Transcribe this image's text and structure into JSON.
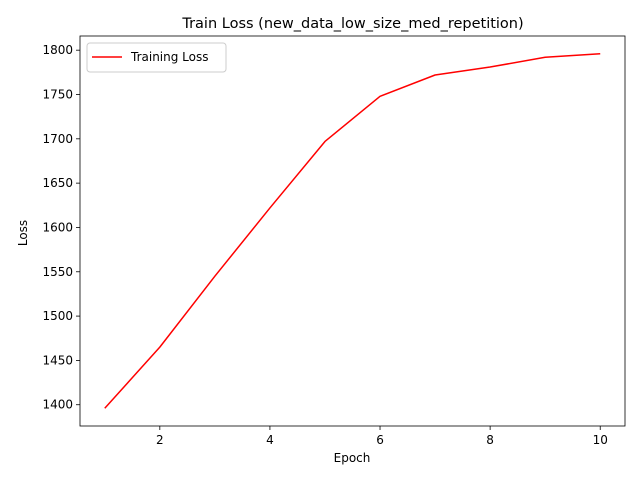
{
  "chart_data": {
    "type": "line",
    "title": "Train Loss (new_data_low_size_med_repetition)",
    "xlabel": "Epoch",
    "ylabel": "Loss",
    "x": [
      1,
      2,
      3,
      4,
      5,
      6,
      7,
      8,
      9,
      10
    ],
    "series": [
      {
        "name": "Training Loss",
        "color": "#ff0000",
        "values": [
          1396,
          1465,
          1545,
          1622,
          1697,
          1748,
          1772,
          1781,
          1792,
          1796
        ]
      }
    ],
    "xlim": [
      0.55,
      10.45
    ],
    "ylim": [
      1376,
      1816
    ],
    "xticks": [
      2,
      4,
      6,
      8,
      10
    ],
    "xtick_labels": [
      "2",
      "4",
      "6",
      "8",
      "10"
    ],
    "yticks": [
      1400,
      1450,
      1500,
      1550,
      1600,
      1650,
      1700,
      1750,
      1800
    ],
    "ytick_labels": [
      "1400",
      "1450",
      "1500",
      "1550",
      "1600",
      "1650",
      "1700",
      "1750",
      "1800"
    ],
    "grid": false,
    "legend": "top-left"
  }
}
